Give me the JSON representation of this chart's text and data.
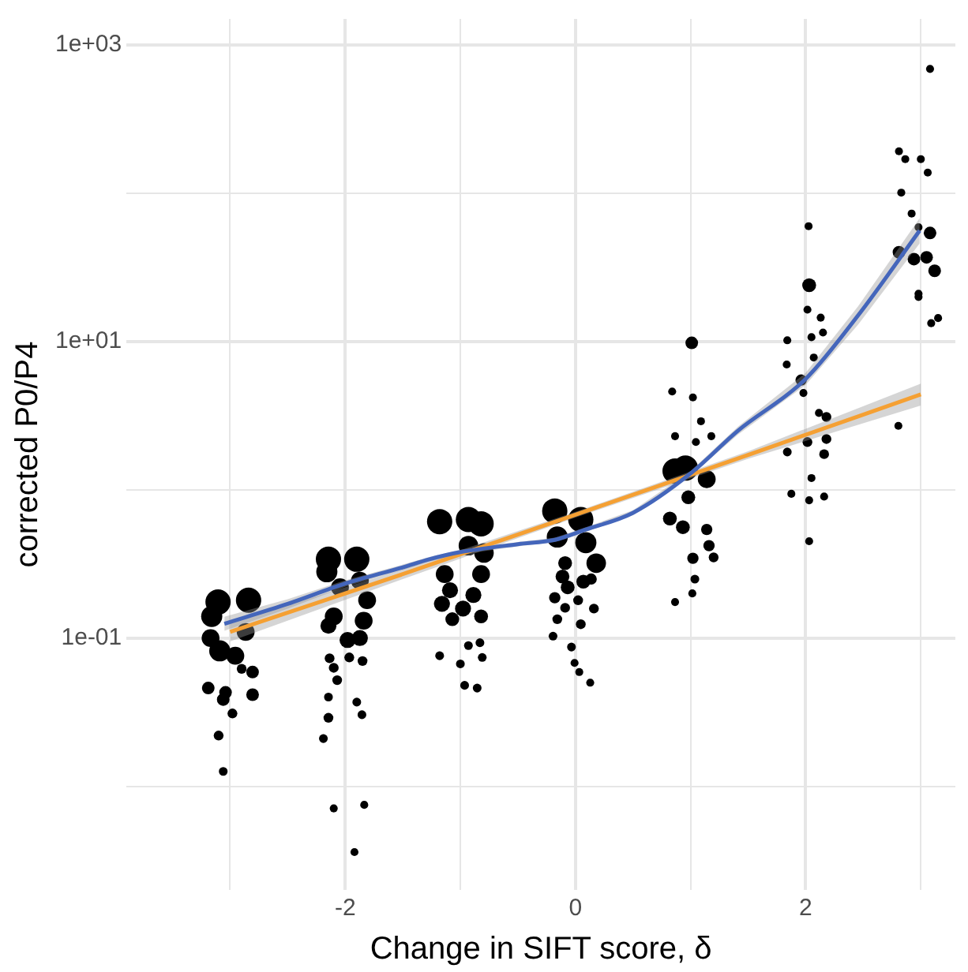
{
  "chart_data": {
    "type": "bubble",
    "xlabel": "Change in SIFT score, δ",
    "ylabel": "corrected P0/P4",
    "log": "y",
    "grid": true,
    "legend": false,
    "xlim": [
      -3.9,
      3.3
    ],
    "ylim": [
      0.002,
      1500
    ],
    "xticks": [
      {
        "value": -3,
        "label": null
      },
      -2,
      {
        "value": -1,
        "label": null
      },
      0,
      {
        "value": 1,
        "label": null
      },
      2,
      {
        "value": 3,
        "label": null
      }
    ],
    "yticks": [
      {
        "value": 0.01,
        "label": null
      },
      {
        "value": 0.1,
        "label": "1e-01"
      },
      {
        "value": 1,
        "label": null
      },
      {
        "value": 10,
        "label": "1e+01"
      },
      {
        "value": 100,
        "label": null
      },
      {
        "value": 1000,
        "label": "1e+03"
      }
    ],
    "series": [
      {
        "color": "#000000",
        "x": [
          -3.105,
          -2.84,
          -3.16,
          -2.865,
          -3.17,
          -3.09,
          -2.955,
          -2.9,
          -2.805,
          -3.19,
          -3.04,
          -3.06,
          -2.805,
          -2.98,
          -3.1,
          -3.06,
          -2.146,
          -1.9,
          -2.16,
          -2.046,
          -1.873,
          -1.81,
          -2.1,
          -1.84,
          -2.146,
          -1.98,
          -1.873,
          -2.136,
          -1.965,
          -1.85,
          -2.1,
          -2.07,
          -2.146,
          -1.9,
          -2.146,
          -1.855,
          -2.19,
          -2.1,
          -1.835,
          -1.92,
          -1.18,
          -0.93,
          -0.82,
          -0.795,
          -0.93,
          -1.136,
          -0.82,
          -1.09,
          -0.887,
          -1.16,
          -0.977,
          -1.07,
          -0.82,
          -1.18,
          -0.93,
          -0.83,
          -1.0,
          -0.81,
          -0.963,
          -0.854,
          -0.18,
          0.046,
          -0.158,
          0.09,
          0.18,
          -0.09,
          -0.113,
          0.068,
          -0.068,
          0.136,
          -0.18,
          0.023,
          0.16,
          -0.09,
          -0.158,
          0.046,
          -0.195,
          -0.035,
          -0.008,
          0.033,
          0.128,
          1.01,
          0.84,
          1.02,
          1.09,
          1.18,
          0.865,
          1.046,
          0.955,
          0.865,
          1.14,
          0.98,
          0.82,
          0.933,
          1.14,
          1.16,
          1.02,
          1.2,
          1.037,
          1.015,
          0.865,
          2.025,
          2.03,
          2.015,
          2.13,
          1.84,
          2.05,
          2.15,
          2.07,
          1.835,
          1.96,
          1.98,
          2.115,
          2.18,
          2.015,
          2.18,
          1.84,
          2.16,
          2.05,
          1.875,
          2.16,
          2.03,
          2.03,
          2.81,
          2.865,
          3.0,
          3.06,
          2.83,
          2.92,
          2.98,
          3.08,
          2.81,
          2.94,
          3.05,
          3.12,
          2.98,
          2.98,
          3.15,
          3.09,
          2.805,
          3.08
        ],
        "values": [
          0.175,
          0.18,
          0.14,
          0.11,
          0.1,
          0.082,
          0.076,
          0.062,
          0.059,
          0.046,
          0.043,
          0.0385,
          0.0415,
          0.031,
          0.022,
          0.0126,
          0.34,
          0.34,
          0.28,
          0.22,
          0.244,
          0.18,
          0.14,
          0.131,
          0.121,
          0.097,
          0.1,
          0.073,
          0.074,
          0.07,
          0.063,
          0.052,
          0.04,
          0.037,
          0.029,
          0.0304,
          0.021,
          0.0071,
          0.0075,
          0.0036,
          0.61,
          0.63,
          0.59,
          0.375,
          0.42,
          0.27,
          0.27,
          0.21,
          0.195,
          0.17,
          0.158,
          0.134,
          0.14,
          0.076,
          0.089,
          0.093,
          0.067,
          0.074,
          0.048,
          0.046,
          0.72,
          0.63,
          0.48,
          0.44,
          0.32,
          0.32,
          0.26,
          0.24,
          0.22,
          0.25,
          0.187,
          0.18,
          0.158,
          0.16,
          0.134,
          0.124,
          0.103,
          0.087,
          0.068,
          0.059,
          0.05,
          9.8,
          4.6,
          4.2,
          2.9,
          2.3,
          2.3,
          2.1,
          1.4,
          1.34,
          1.18,
          0.89,
          0.64,
          0.56,
          0.54,
          0.42,
          0.345,
          0.35,
          0.25,
          0.2,
          0.175,
          60,
          24,
          16.4,
          14.5,
          10.2,
          10.7,
          11.5,
          7.8,
          7.0,
          5.5,
          4.5,
          3.3,
          3.1,
          2.1,
          2.2,
          1.8,
          1.74,
          1.2,
          0.94,
          0.9,
          0.85,
          0.45,
          192,
          170,
          170,
          138,
          101,
          73,
          59,
          54,
          40,
          36,
          37,
          30,
          21,
          20,
          14.4,
          13.3,
          2.7,
          690
        ],
        "sizes": [
          1,
          1,
          0.7,
          0.5,
          0.5,
          0.7,
          0.5,
          0.15,
          0.25,
          0.25,
          0.25,
          0.25,
          0.25,
          0.15,
          0.15,
          0.12,
          1,
          1,
          0.7,
          0.5,
          0.5,
          0.5,
          0.5,
          0.5,
          0.4,
          0.4,
          0.4,
          0.15,
          0.15,
          0.15,
          0.15,
          0.15,
          0.12,
          0.12,
          0.15,
          0.12,
          0.12,
          0.1,
          0.1,
          0.1,
          1,
          1,
          1,
          0.6,
          0.6,
          0.5,
          0.5,
          0.4,
          0.4,
          0.4,
          0.4,
          0.3,
          0.3,
          0.12,
          0.12,
          0.12,
          0.12,
          0.12,
          0.12,
          0.12,
          1,
          1,
          0.7,
          0.7,
          0.6,
          0.3,
          0.3,
          0.3,
          0.3,
          0.2,
          0.2,
          0.15,
          0.15,
          0.15,
          0.15,
          0.15,
          0.12,
          0.12,
          0.1,
          0.1,
          0.1,
          0.25,
          0.1,
          0.1,
          0.1,
          0.1,
          0.1,
          0.1,
          1,
          1,
          0.5,
          0.3,
          0.3,
          0.3,
          0.2,
          0.2,
          0.2,
          0.15,
          0.12,
          0.1,
          0.1,
          0.1,
          0.3,
          0.1,
          0.1,
          0.1,
          0.1,
          0.1,
          0.1,
          0.1,
          0.2,
          0.1,
          0.1,
          0.15,
          0.15,
          0.15,
          0.12,
          0.15,
          0.1,
          0.1,
          0.1,
          0.1,
          0.1,
          0.1,
          0.1,
          0.1,
          0.1,
          0.1,
          0.1,
          0.1,
          0.25,
          0.25,
          0.25,
          0.25,
          0.25,
          0.1,
          0.1,
          0.1,
          0.1,
          0.1,
          0.1
        ]
      },
      {
        "type": "line",
        "color": "#4466bb",
        "x": [
          -3.05,
          -2.5,
          -2,
          -1.5,
          -1.27,
          -1,
          -0.5,
          -0.18,
          0.09,
          0.5,
          1.0,
          1.41,
          2.0,
          2.455,
          2.99
        ],
        "values": [
          0.125,
          0.17,
          0.233,
          0.3,
          0.34,
          0.38,
          0.43,
          0.46,
          0.54,
          0.7,
          1.29,
          2.5,
          5.6,
          15,
          56
        ],
        "lower": [
          0.112,
          0.158,
          0.222,
          0.288,
          0.328,
          0.367,
          0.416,
          0.445,
          0.522,
          0.675,
          1.24,
          2.35,
          5.1,
          13,
          46
        ],
        "upper": [
          0.139,
          0.183,
          0.245,
          0.313,
          0.352,
          0.394,
          0.445,
          0.476,
          0.559,
          0.727,
          1.34,
          2.66,
          6.15,
          17.3,
          68
        ]
      },
      {
        "type": "line",
        "color": "#f5a033",
        "x": [
          -3.0,
          -1.5,
          0,
          1.5,
          3.0
        ],
        "values": [
          0.11,
          0.27,
          0.68,
          1.72,
          4.4
        ],
        "lower": [
          0.095,
          0.25,
          0.65,
          1.62,
          3.7
        ],
        "upper": [
          0.127,
          0.29,
          0.71,
          1.82,
          5.2
        ]
      }
    ]
  }
}
